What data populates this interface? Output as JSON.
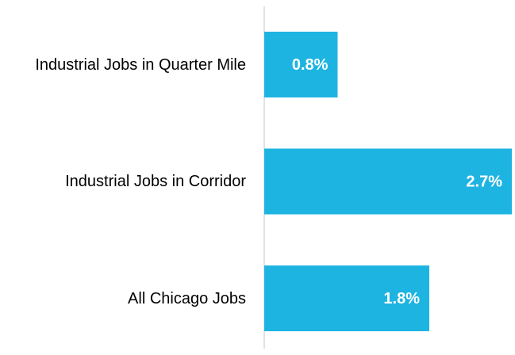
{
  "chart_data": {
    "type": "bar",
    "orientation": "horizontal",
    "categories": [
      "Industrial Jobs in Quarter Mile",
      "Industrial Jobs in Corridor",
      "All Chicago Jobs"
    ],
    "values": [
      0.8,
      2.7,
      1.8
    ],
    "value_labels": [
      "0.8%",
      "2.7%",
      "1.8%"
    ],
    "color": "#1eb4e1"
  }
}
